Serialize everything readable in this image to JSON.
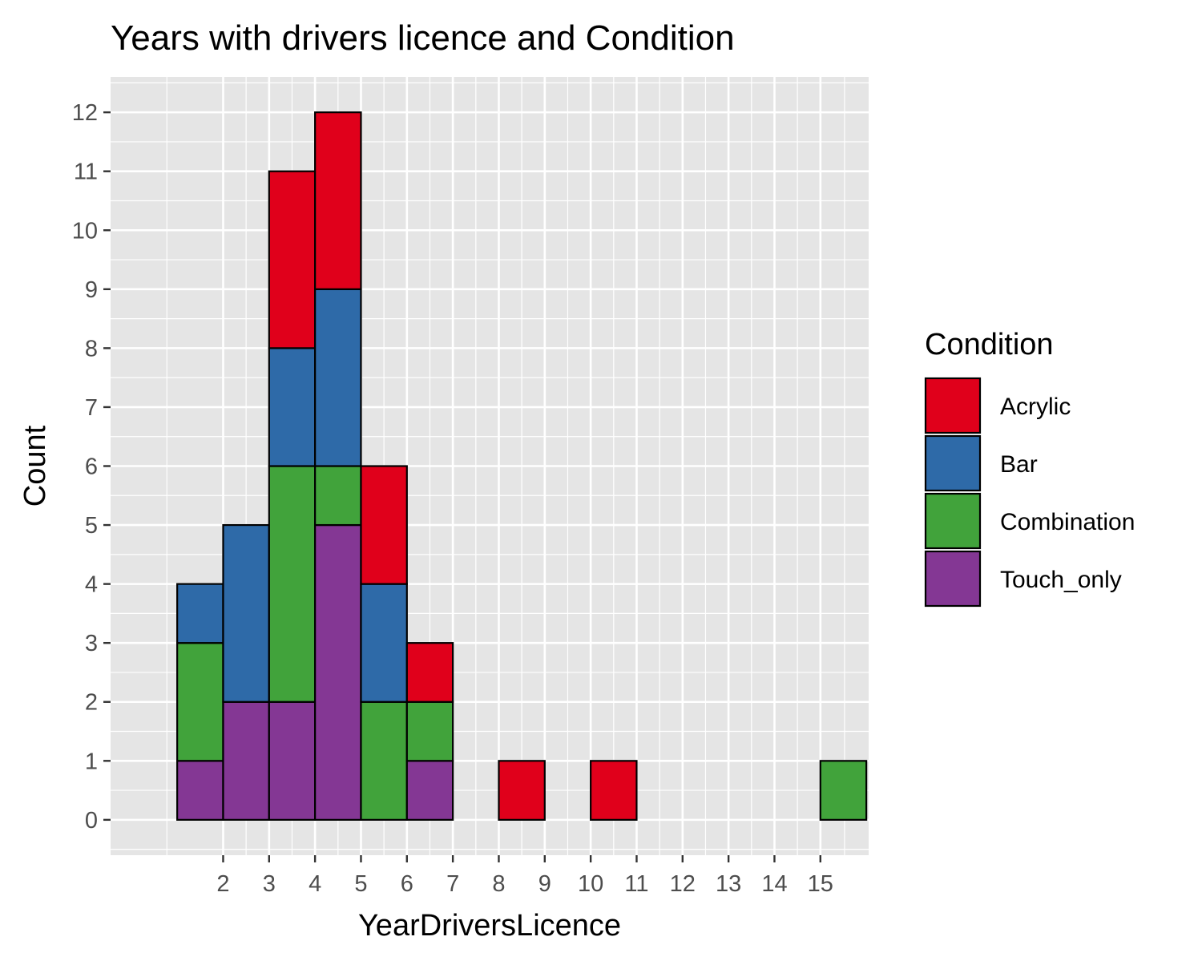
{
  "chart_data": {
    "type": "bar",
    "stacked": true,
    "title": "Years with drivers licence and Condition",
    "xlabel": "YearDriversLicence",
    "ylabel": "Count",
    "x_ticks": [
      2,
      3,
      4,
      5,
      6,
      7,
      8,
      9,
      10,
      11,
      12,
      13,
      14,
      15
    ],
    "x_range": [
      -0.45,
      16.05
    ],
    "ylim": [
      -0.6,
      12.6
    ],
    "y_ticks": [
      0,
      1,
      2,
      3,
      4,
      5,
      6,
      7,
      8,
      9,
      10,
      11,
      12
    ],
    "grid": true,
    "legend": {
      "title": "Condition",
      "position": "right"
    },
    "series_order_bottom_to_top": [
      "Touch_only",
      "Combination",
      "Bar",
      "Acrylic"
    ],
    "bins": [
      {
        "from": 1.0,
        "to": 2.0
      },
      {
        "from": 2.0,
        "to": 3.0
      },
      {
        "from": 3.0,
        "to": 4.0
      },
      {
        "from": 4.0,
        "to": 5.0
      },
      {
        "from": 5.0,
        "to": 6.0
      },
      {
        "from": 6.0,
        "to": 7.0
      },
      {
        "from": 7.0,
        "to": 8.0
      },
      {
        "from": 8.0,
        "to": 9.0
      },
      {
        "from": 9.0,
        "to": 10.0
      },
      {
        "from": 10.0,
        "to": 11.0
      },
      {
        "from": 11.0,
        "to": 12.0
      },
      {
        "from": 12.0,
        "to": 13.0
      },
      {
        "from": 13.0,
        "to": 14.0
      },
      {
        "from": 14.0,
        "to": 15.0
      },
      {
        "from": 15.0,
        "to": 16.0
      }
    ],
    "series": [
      {
        "name": "Acrylic",
        "color": "#e0001b",
        "values": [
          0,
          0,
          3,
          3,
          2,
          1,
          0,
          1,
          0,
          1,
          0,
          0,
          0,
          0,
          0
        ]
      },
      {
        "name": "Bar",
        "color": "#2e6aa8",
        "values": [
          1,
          3,
          2,
          3,
          2,
          0,
          0,
          0,
          0,
          0,
          0,
          0,
          0,
          0,
          0
        ]
      },
      {
        "name": "Combination",
        "color": "#41a33b",
        "values": [
          2,
          0,
          4,
          1,
          2,
          1,
          0,
          0,
          0,
          0,
          0,
          0,
          0,
          0,
          1
        ]
      },
      {
        "name": "Touch_only",
        "color": "#843794",
        "values": [
          1,
          2,
          2,
          5,
          0,
          1,
          0,
          0,
          0,
          0,
          0,
          0,
          0,
          0,
          0
        ]
      }
    ]
  }
}
